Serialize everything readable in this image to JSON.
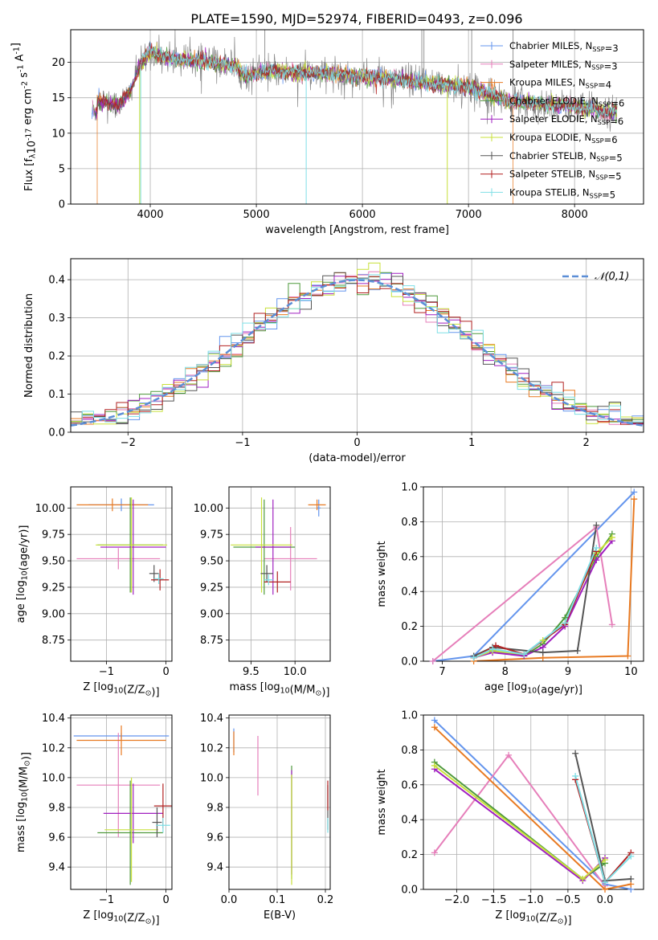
{
  "figure": {
    "title": "PLATE=1590, MJD=52974, FIBERID=0493, z=0.096"
  },
  "series_names": [
    "Chabrier MILES, N$_{SSP}$=3",
    "Salpeter MILES, N$_{SSP}$=3",
    "Kroupa MILES, N$_{SSP}$=4",
    "Chabrier ELODIE, N$_{SSP}$=6",
    "Salpeter ELODIE, N$_{SSP}$=6",
    "Kroupa ELODIE, N$_{SSP}$=6",
    "Chabrier STELIB, N$_{SSP}$=5",
    "Salpeter STELIB, N$_{SSP}$=5",
    "Kroupa STELIB, N$_{SSP}$=5"
  ],
  "colors": {
    "chabrier_miles": "#6495ed",
    "salpeter_miles": "#e67fba",
    "kroupa_miles": "#e87a22",
    "chabrier_elodie": "#4f9a3c",
    "salpeter_elodie": "#a020c0",
    "kroupa_elodie": "#c8e03a",
    "chabrier_stelib": "#555555",
    "salpeter_stelib": "#b22222",
    "kroupa_stelib": "#7fdfe6",
    "data_spectrum": "#888888",
    "gaussian": "#5b8ed6"
  },
  "chart_data": [
    {
      "id": "spectrum",
      "type": "line",
      "title": "PLATE=1590, MJD=52974, FIBERID=0493, z=0.096",
      "xlabel": "wavelength [Angstrom, rest frame]",
      "ylabel": "Flux [f$_\\lambda$10$^{-17}$ erg cm$^{-2}$ s$^{-1}$ A$^{-1}$]",
      "xlim": [
        3250,
        8650
      ],
      "ylim": [
        0,
        24.6
      ],
      "xticks": [
        4000,
        5000,
        6000,
        7000,
        8000
      ],
      "yticks": [
        0,
        5,
        10,
        15,
        20
      ],
      "legend_position": "top-right",
      "data_anchor": {
        "x": [
          3500,
          3700,
          3800,
          3900,
          4000,
          4100,
          4200,
          4400,
          4600,
          4800,
          4900,
          5000,
          5200,
          5400,
          5600,
          5800,
          6000,
          6200,
          6400,
          6600,
          6800,
          7000,
          7200,
          7400,
          7600,
          7800,
          8000,
          8200,
          8400
        ],
        "y": [
          14.5,
          14.0,
          15.5,
          19.5,
          21.5,
          21.0,
          20.5,
          20.3,
          20.0,
          19.5,
          18.0,
          18.5,
          18.8,
          18.5,
          18.5,
          18.2,
          18.0,
          17.8,
          17.5,
          17.0,
          16.8,
          16.5,
          15.5,
          14.5,
          14.2,
          14.0,
          13.8,
          13.3,
          13.0
        ]
      },
      "model_drops": {
        "Kroupa MILES": [
          3500,
          7420
        ],
        "Kroupa ELODIE": [
          3900,
          6800
        ],
        "Kroupa STELIB": [
          3910,
          5470
        ]
      }
    },
    {
      "id": "residual_hist",
      "type": "line",
      "xlabel": "(data-model)/error",
      "ylabel": "Normed distribution",
      "xlim": [
        -2.5,
        2.5
      ],
      "ylim": [
        0,
        0.455
      ],
      "xticks": [
        -2,
        -1,
        0,
        1,
        2
      ],
      "yticks": [
        0.0,
        0.1,
        0.2,
        0.3,
        0.4
      ],
      "legend": "$\\mathcal{N}(0,1)$",
      "legend_position": "top-right",
      "bin_width": 0.1
    },
    {
      "id": "age_vs_Z",
      "type": "scatter",
      "xlabel": "Z [log$_{10}$(Z/Z$_\\odot$)]",
      "ylabel": "age  [log$_{10}$(age/yr)]",
      "xlim": [
        -1.6,
        0.1
      ],
      "ylim": [
        8.55,
        10.2
      ],
      "xticks": [
        -1,
        0
      ],
      "yticks": [
        8.75,
        9.0,
        9.25,
        9.5,
        9.75,
        10.0
      ],
      "points": [
        {
          "s": 0,
          "x": -0.75,
          "xerr": 0.55,
          "y": 10.03,
          "yerr": 0.06
        },
        {
          "s": 1,
          "x": -0.8,
          "xerr": 0.7,
          "y": 9.52,
          "yerr": 0.1
        },
        {
          "s": 2,
          "x": -0.9,
          "xerr": 0.6,
          "y": 10.03,
          "yerr": 0.06
        },
        {
          "s": 3,
          "x": -0.6,
          "xerr": 0.55,
          "y": 9.65,
          "yerr": 0.45
        },
        {
          "s": 4,
          "x": -0.55,
          "xerr": 0.55,
          "y": 9.63,
          "yerr": 0.45
        },
        {
          "s": 5,
          "x": -0.58,
          "xerr": 0.6,
          "y": 9.65,
          "yerr": 0.45
        },
        {
          "s": 6,
          "x": -0.2,
          "xerr": 0.08,
          "y": 9.38,
          "yerr": 0.08
        },
        {
          "s": 7,
          "x": -0.1,
          "xerr": 0.15,
          "y": 9.32,
          "yerr": 0.1
        },
        {
          "s": 8,
          "x": -0.12,
          "xerr": 0.08,
          "y": 9.33,
          "yerr": 0.05
        }
      ]
    },
    {
      "id": "age_vs_mass",
      "type": "scatter",
      "xlabel": "mass [log$_{10}$(M/M$_\\odot$)]",
      "ylabel": "",
      "xlim": [
        9.25,
        10.4
      ],
      "ylim": [
        8.55,
        10.2
      ],
      "xticks": [
        9.5,
        10.0
      ],
      "yticks": [
        8.75,
        9.0,
        9.25,
        9.5,
        9.75,
        10.0
      ],
      "points": [
        {
          "s": 0,
          "x": 10.27,
          "xerr": 0.02,
          "y": 10.0,
          "yerr": 0.08
        },
        {
          "s": 1,
          "x": 9.95,
          "xerr": 0.3,
          "y": 9.52,
          "yerr": 0.3
        },
        {
          "s": 2,
          "x": 10.25,
          "xerr": 0.1,
          "y": 10.03,
          "yerr": 0.05
        },
        {
          "s": 3,
          "x": 9.65,
          "xerr": 0.35,
          "y": 9.63,
          "yerr": 0.45
        },
        {
          "s": 4,
          "x": 9.75,
          "xerr": 0.2,
          "y": 9.63,
          "yerr": 0.45
        },
        {
          "s": 5,
          "x": 9.62,
          "xerr": 0.35,
          "y": 9.65,
          "yerr": 0.45
        },
        {
          "s": 6,
          "x": 9.68,
          "xerr": 0.07,
          "y": 9.38,
          "yerr": 0.08
        },
        {
          "s": 7,
          "x": 9.8,
          "xerr": 0.15,
          "y": 9.3,
          "yerr": 0.1
        },
        {
          "s": 8,
          "x": 9.7,
          "xerr": 0.05,
          "y": 9.32,
          "yerr": 0.05
        }
      ]
    },
    {
      "id": "massweight_vs_age",
      "type": "line",
      "xlabel": "age  [log$_{10}$(age/yr)]",
      "ylabel": "mass weight",
      "xlim": [
        6.7,
        10.2
      ],
      "ylim": [
        0,
        1.0
      ],
      "xticks": [
        7,
        8,
        9,
        10
      ],
      "yticks": [
        0.0,
        0.2,
        0.4,
        0.6,
        0.8,
        1.0
      ],
      "series": [
        {
          "s": 0,
          "x": [
            6.85,
            7.5,
            10.05
          ],
          "y": [
            0.0,
            0.03,
            0.97
          ]
        },
        {
          "s": 1,
          "x": [
            6.85,
            9.45,
            9.7
          ],
          "y": [
            0.0,
            0.77,
            0.21
          ]
        },
        {
          "s": 2,
          "x": [
            7.5,
            8.6,
            9.95,
            10.05
          ],
          "y": [
            0.0,
            0.02,
            0.03,
            0.93
          ]
        },
        {
          "s": 3,
          "x": [
            7.5,
            7.8,
            8.3,
            8.6,
            8.95,
            9.45,
            9.7
          ],
          "y": [
            0.02,
            0.06,
            0.03,
            0.1,
            0.25,
            0.6,
            0.73
          ]
        },
        {
          "s": 4,
          "x": [
            7.5,
            7.8,
            8.3,
            8.6,
            8.95,
            9.45,
            9.7
          ],
          "y": [
            0.02,
            0.05,
            0.03,
            0.08,
            0.2,
            0.58,
            0.69
          ]
        },
        {
          "s": 5,
          "x": [
            7.5,
            7.8,
            8.3,
            8.6,
            8.95,
            9.45,
            9.7
          ],
          "y": [
            0.02,
            0.06,
            0.04,
            0.12,
            0.22,
            0.62,
            0.71
          ]
        },
        {
          "s": 6,
          "x": [
            7.5,
            7.8,
            8.6,
            9.15,
            9.45
          ],
          "y": [
            0.03,
            0.08,
            0.05,
            0.06,
            0.78
          ]
        },
        {
          "s": 7,
          "x": [
            7.5,
            7.85,
            8.3,
            8.95,
            9.45
          ],
          "y": [
            0.02,
            0.09,
            0.04,
            0.21,
            0.63
          ]
        },
        {
          "s": 8,
          "x": [
            7.5,
            7.8,
            8.3,
            8.95,
            9.45
          ],
          "y": [
            0.02,
            0.07,
            0.04,
            0.22,
            0.65
          ]
        }
      ]
    },
    {
      "id": "mass_vs_Z",
      "type": "scatter",
      "xlabel": "Z [log$_{10}$(Z/Z$_\\odot$)]",
      "ylabel": "mass [log$_{10}$(M/M$_\\odot$)]",
      "xlim": [
        -1.6,
        0.1
      ],
      "ylim": [
        9.25,
        10.42
      ],
      "xticks": [
        -1,
        0
      ],
      "yticks": [
        9.4,
        9.6,
        9.8,
        10.0,
        10.2,
        10.4
      ],
      "points": [
        {
          "s": 0,
          "x": -0.75,
          "xerr": 0.8,
          "y": 10.28,
          "yerr": 0.02
        },
        {
          "s": 1,
          "x": -0.8,
          "xerr": 0.7,
          "y": 9.95,
          "yerr": 0.35
        },
        {
          "s": 2,
          "x": -0.75,
          "xerr": 0.75,
          "y": 10.25,
          "yerr": 0.1
        },
        {
          "s": 3,
          "x": -0.6,
          "xerr": 0.55,
          "y": 9.63,
          "yerr": 0.35
        },
        {
          "s": 4,
          "x": -0.55,
          "xerr": 0.5,
          "y": 9.76,
          "yerr": 0.2
        },
        {
          "s": 5,
          "x": -0.58,
          "xerr": 0.45,
          "y": 9.65,
          "yerr": 0.35
        },
        {
          "s": 6,
          "x": -0.15,
          "xerr": 0.08,
          "y": 9.7,
          "yerr": 0.1
        },
        {
          "s": 7,
          "x": -0.05,
          "xerr": 0.15,
          "y": 9.81,
          "yerr": 0.15
        },
        {
          "s": 8,
          "x": -0.05,
          "xerr": 0.12,
          "y": 9.68,
          "yerr": 0.05
        }
      ]
    },
    {
      "id": "mass_vs_EBV",
      "type": "scatter",
      "xlabel": "E(B-V)",
      "ylabel": "",
      "xlim": [
        0.0,
        0.21
      ],
      "ylim": [
        9.25,
        10.42
      ],
      "xticks": [
        0.0,
        0.1,
        0.2
      ],
      "yticks": [
        9.4,
        9.6,
        9.8,
        10.0,
        10.2,
        10.4
      ],
      "points": [
        {
          "s": 0,
          "x": 0.01,
          "y": 10.25,
          "yerr": 0.08
        },
        {
          "s": 1,
          "x": 0.06,
          "y": 10.08,
          "yerr": 0.2
        },
        {
          "s": 2,
          "x": 0.01,
          "y": 10.23,
          "yerr": 0.08
        },
        {
          "s": 3,
          "x": 0.13,
          "y": 9.7,
          "yerr": 0.38
        },
        {
          "s": 4,
          "x": 0.13,
          "y": 9.7,
          "yerr": 0.35
        },
        {
          "s": 5,
          "x": 0.13,
          "y": 9.65,
          "yerr": 0.37
        },
        {
          "s": 6,
          "x": 0.205,
          "y": 9.8,
          "yerr": 0.15
        },
        {
          "s": 7,
          "x": 0.205,
          "y": 9.88,
          "yerr": 0.1
        },
        {
          "s": 8,
          "x": 0.205,
          "y": 9.68,
          "yerr": 0.05
        }
      ]
    },
    {
      "id": "massweight_vs_Z",
      "type": "line",
      "xlabel": "Z [log$_{10}$(Z/Z$_\\odot$)]",
      "ylabel": "mass weight",
      "xlim": [
        -2.45,
        0.52
      ],
      "ylim": [
        0,
        1.0
      ],
      "xticks": [
        -2.0,
        -1.5,
        -1.0,
        -0.5,
        0.0
      ],
      "yticks": [
        0.0,
        0.2,
        0.4,
        0.6,
        0.8,
        1.0
      ],
      "series": [
        {
          "s": 0,
          "x": [
            -2.3,
            0.0,
            0.35
          ],
          "y": [
            0.97,
            0.03,
            0.0
          ]
        },
        {
          "s": 1,
          "x": [
            -2.3,
            -1.3,
            0.0
          ],
          "y": [
            0.21,
            0.77,
            0.02
          ]
        },
        {
          "s": 2,
          "x": [
            -2.3,
            0.0,
            0.35
          ],
          "y": [
            0.93,
            0.0,
            0.03
          ]
        },
        {
          "s": 3,
          "x": [
            -2.3,
            -0.3,
            0.0
          ],
          "y": [
            0.73,
            0.06,
            0.15
          ]
        },
        {
          "s": 4,
          "x": [
            -2.3,
            -0.3,
            0.0
          ],
          "y": [
            0.69,
            0.05,
            0.18
          ]
        },
        {
          "s": 5,
          "x": [
            -2.3,
            -0.3,
            0.0
          ],
          "y": [
            0.71,
            0.06,
            0.17
          ]
        },
        {
          "s": 6,
          "x": [
            -0.4,
            0.0,
            0.35
          ],
          "y": [
            0.78,
            0.05,
            0.06
          ]
        },
        {
          "s": 7,
          "x": [
            -0.4,
            0.0,
            0.35
          ],
          "y": [
            0.63,
            0.04,
            0.21
          ]
        },
        {
          "s": 8,
          "x": [
            -0.4,
            0.0,
            0.35
          ],
          "y": [
            0.65,
            0.04,
            0.19
          ]
        }
      ]
    }
  ]
}
